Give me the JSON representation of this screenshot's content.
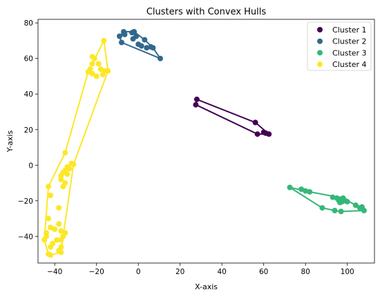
{
  "chart_data": {
    "type": "scatter",
    "title": "Clusters with Convex Hulls",
    "xlabel": "X-axis",
    "ylabel": "Y-axis",
    "xlim": [
      -48,
      113
    ],
    "ylim": [
      -55,
      82
    ],
    "xticks": [
      -40,
      -20,
      0,
      20,
      40,
      60,
      80,
      100
    ],
    "yticks": [
      -40,
      -20,
      0,
      20,
      40,
      60,
      80
    ],
    "xtick_labels": [
      "−40",
      "−20",
      "0",
      "20",
      "40",
      "60",
      "80",
      "100"
    ],
    "ytick_labels": [
      "−40",
      "−20",
      "0",
      "20",
      "40",
      "60",
      "80"
    ],
    "grid": false,
    "legend_position": "top-right",
    "series": [
      {
        "name": "Cluster 1",
        "color": "#440154",
        "points": [
          [
            28,
            37
          ],
          [
            27.5,
            34
          ],
          [
            56,
            24
          ],
          [
            57,
            17.5
          ],
          [
            60,
            18.5
          ],
          [
            61,
            18
          ],
          [
            62.5,
            17.5
          ]
        ],
        "hull": [
          [
            28,
            37
          ],
          [
            56,
            24
          ],
          [
            62.5,
            17.5
          ],
          [
            57,
            17.5
          ],
          [
            27.5,
            34
          ]
        ]
      },
      {
        "name": "Cluster 2",
        "color": "#31688e",
        "points": [
          [
            -9,
            72.5
          ],
          [
            -7,
            75
          ],
          [
            -6.5,
            73.5
          ],
          [
            -8,
            69
          ],
          [
            -3,
            74.5
          ],
          [
            -2,
            75
          ],
          [
            -1,
            72.5
          ],
          [
            -2.5,
            71
          ],
          [
            0,
            68
          ],
          [
            1.5,
            67
          ],
          [
            3,
            70.5
          ],
          [
            4,
            66
          ],
          [
            6,
            66.5
          ],
          [
            7,
            66
          ],
          [
            10.5,
            60
          ]
        ],
        "hull": [
          [
            -9,
            72.5
          ],
          [
            -7,
            75
          ],
          [
            -2,
            75
          ],
          [
            3,
            70.5
          ],
          [
            7,
            66
          ],
          [
            10.5,
            60
          ],
          [
            -8,
            69
          ]
        ]
      },
      {
        "name": "Cluster 3",
        "color": "#35b779",
        "points": [
          [
            72.5,
            -12.5
          ],
          [
            78,
            -13.5
          ],
          [
            80,
            -14.5
          ],
          [
            82,
            -15
          ],
          [
            88,
            -24
          ],
          [
            93,
            -18
          ],
          [
            94,
            -25.5
          ],
          [
            95,
            -18.5
          ],
          [
            96,
            -20
          ],
          [
            96.5,
            -21
          ],
          [
            97,
            -19
          ],
          [
            97.5,
            -20.5
          ],
          [
            98,
            -18.5
          ],
          [
            99,
            -20
          ],
          [
            100,
            -20.5
          ],
          [
            97,
            -26
          ],
          [
            104,
            -22.5
          ],
          [
            106,
            -24
          ],
          [
            107,
            -23.5
          ],
          [
            108,
            -25.5
          ]
        ],
        "hull": [
          [
            72.5,
            -12.5
          ],
          [
            82,
            -15
          ],
          [
            98,
            -18.5
          ],
          [
            104,
            -22.5
          ],
          [
            108,
            -25.5
          ],
          [
            97,
            -26
          ],
          [
            94,
            -25.5
          ],
          [
            88,
            -24
          ]
        ]
      },
      {
        "name": "Cluster 4",
        "color": "#fde725",
        "points": [
          [
            -16.5,
            70
          ],
          [
            -22,
            61
          ],
          [
            -21,
            60
          ],
          [
            -22,
            57
          ],
          [
            -23,
            54
          ],
          [
            -22,
            51.5
          ],
          [
            -24,
            52.5
          ],
          [
            -19,
            57
          ],
          [
            -18,
            54
          ],
          [
            -16,
            53
          ],
          [
            -14.5,
            53
          ],
          [
            -17,
            51
          ],
          [
            -20,
            50
          ],
          [
            -35,
            7
          ],
          [
            -32,
            1
          ],
          [
            -31,
            0.5
          ],
          [
            -34,
            -1
          ],
          [
            -33,
            -2
          ],
          [
            -35,
            -3
          ],
          [
            -36,
            -4
          ],
          [
            -34,
            -5
          ],
          [
            -37,
            -6
          ],
          [
            -37,
            -8
          ],
          [
            -35,
            -10
          ],
          [
            -36,
            -12
          ],
          [
            -43,
            -12
          ],
          [
            -42,
            -17
          ],
          [
            -38,
            -24
          ],
          [
            -43,
            -30
          ],
          [
            -38,
            -33
          ],
          [
            -42,
            -35
          ],
          [
            -40,
            -36
          ],
          [
            -37,
            -37
          ],
          [
            -35,
            -38
          ],
          [
            -44,
            -38
          ],
          [
            -44,
            -40
          ],
          [
            -36,
            -40
          ],
          [
            -37,
            -42
          ],
          [
            -39,
            -42
          ],
          [
            -41,
            -44
          ],
          [
            -42,
            -46
          ],
          [
            -37,
            -46
          ],
          [
            -38,
            -48
          ],
          [
            -43,
            -50
          ],
          [
            -42,
            -50.5
          ],
          [
            -37,
            -49
          ],
          [
            -45,
            -42
          ]
        ],
        "hull": [
          [
            -16.5,
            70
          ],
          [
            -14.5,
            53
          ],
          [
            -31,
            0.5
          ],
          [
            -36,
            -40
          ],
          [
            -37,
            -49
          ],
          [
            -42,
            -50.5
          ],
          [
            -43,
            -50
          ],
          [
            -45,
            -42
          ],
          [
            -43,
            -12
          ],
          [
            -35,
            7
          ],
          [
            -24,
            52.5
          ]
        ]
      }
    ]
  }
}
